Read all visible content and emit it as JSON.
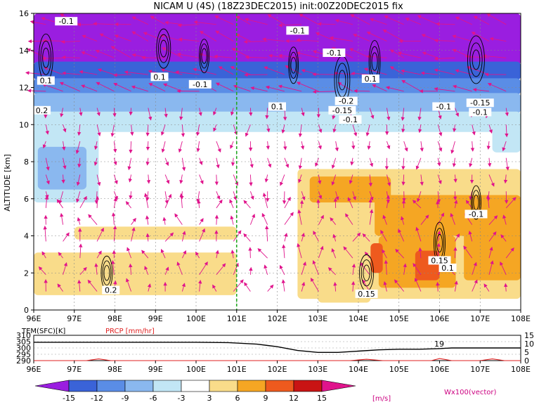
{
  "chart_data": [
    {
      "type": "heatmap",
      "title": "NICAM U (4S)  (18Z23DEC2015)  init:00Z20DEC2015  fix",
      "xlabel": "",
      "ylabel": "ALTITUDE [km]",
      "x_ticks": [
        "96E",
        "97E",
        "98E",
        "99E",
        "100E",
        "101E",
        "102E",
        "103E",
        "104E",
        "105E",
        "106E",
        "107E",
        "108E"
      ],
      "y_ticks": [
        "0",
        "2",
        "4",
        "6",
        "8",
        "10",
        "12",
        "14",
        "16"
      ],
      "xlim": [
        96,
        108
      ],
      "ylim": [
        0,
        16
      ],
      "grid": true,
      "marker_line_lon": 101,
      "colorbar": {
        "levels": [
          "-15",
          "-12",
          "-9",
          "-6",
          "-3",
          "3",
          "6",
          "9",
          "12",
          "15"
        ],
        "colors": [
          "#9a1ee0",
          "#3a63d8",
          "#5a8de6",
          "#8ab8ef",
          "#c2e6f5",
          "#ffffff",
          "#f9dc8a",
          "#f5a623",
          "#ee5a1e",
          "#c91414",
          "#9b0a0a"
        ],
        "unit": "[m/s]"
      },
      "vector_label": "Wx100(vector)",
      "regions": [
        {
          "lon0": 96,
          "lon1": 108,
          "alt0": 13.2,
          "alt1": 16,
          "level": "<-15"
        },
        {
          "lon0": 96,
          "lon1": 108,
          "alt0": 12.4,
          "alt1": 13.4,
          "level": "-15..-12"
        },
        {
          "lon0": 96,
          "lon1": 108,
          "alt0": 11.6,
          "alt1": 12.5,
          "level": "-12..-9"
        },
        {
          "lon0": 96,
          "lon1": 108,
          "alt0": 10.6,
          "alt1": 11.7,
          "level": "-9..-6"
        },
        {
          "lon0": 96,
          "lon1": 108,
          "alt0": 9.6,
          "alt1": 10.7,
          "level": "-6..-3"
        },
        {
          "lon0": 96,
          "lon1": 97.6,
          "alt0": 5.8,
          "alt1": 9.8,
          "level": "-6..-3"
        },
        {
          "lon0": 96.1,
          "lon1": 97.3,
          "alt0": 6.5,
          "alt1": 8.8,
          "level": "-9..-6"
        },
        {
          "lon0": 107.3,
          "lon1": 108,
          "alt0": 8.5,
          "alt1": 9.8,
          "level": "-6..-3"
        },
        {
          "lon0": 96,
          "lon1": 101,
          "alt0": 0.8,
          "alt1": 3.1,
          "level": "3..6"
        },
        {
          "lon0": 97,
          "lon1": 101,
          "alt0": 3.8,
          "alt1": 4.5,
          "level": "3..6"
        },
        {
          "lon0": 102.5,
          "lon1": 108,
          "alt0": 0.6,
          "alt1": 7.6,
          "level": "3..6"
        },
        {
          "lon0": 103,
          "lon1": 104.3,
          "alt0": 0.4,
          "alt1": 2.6,
          "level": "3..6"
        },
        {
          "lon0": 102.8,
          "lon1": 104.8,
          "alt0": 5.8,
          "alt1": 7.2,
          "level": "6..9"
        },
        {
          "lon0": 104.4,
          "lon1": 108,
          "alt0": 4.0,
          "alt1": 6.2,
          "level": "6..9"
        },
        {
          "lon0": 104.5,
          "lon1": 106.4,
          "alt0": 1.2,
          "alt1": 4.0,
          "level": "6..9"
        },
        {
          "lon0": 106.6,
          "lon1": 108,
          "alt0": 1.6,
          "alt1": 4.2,
          "level": "6..9"
        },
        {
          "lon0": 105.4,
          "lon1": 106,
          "alt0": 1.6,
          "alt1": 3.2,
          "level": "9..12"
        },
        {
          "lon0": 104.3,
          "lon1": 104.6,
          "alt0": 2.0,
          "alt1": 3.6,
          "level": "9..12"
        }
      ],
      "contour_labels": [
        {
          "text": "-0.1",
          "lon": 96.8,
          "alt": 15.5
        },
        {
          "text": "-0.1",
          "lon": 102.5,
          "alt": 15.0
        },
        {
          "text": "-0.1",
          "lon": 103.4,
          "alt": 13.8
        },
        {
          "text": "0.1",
          "lon": 99.1,
          "alt": 12.5
        },
        {
          "text": "-0.1",
          "lon": 100.1,
          "alt": 12.1
        },
        {
          "text": "0.1",
          "lon": 104.3,
          "alt": 12.4
        },
        {
          "text": "0.1",
          "lon": 102.0,
          "alt": 10.9
        },
        {
          "text": "-0.2",
          "lon": 103.7,
          "alt": 11.2
        },
        {
          "text": "-0.15",
          "lon": 103.6,
          "alt": 10.7
        },
        {
          "text": "-0.1",
          "lon": 103.8,
          "alt": 10.2
        },
        {
          "text": "-0.1",
          "lon": 106.1,
          "alt": 10.9
        },
        {
          "text": "-0.15",
          "lon": 107.0,
          "alt": 11.1
        },
        {
          "text": "-0.1",
          "lon": 107.0,
          "alt": 10.6
        },
        {
          "text": "0.2",
          "lon": 96.2,
          "alt": 10.7
        },
        {
          "text": "0.1",
          "lon": 96.3,
          "alt": 12.3
        },
        {
          "text": "-0.1",
          "lon": 106.9,
          "alt": 5.1
        },
        {
          "text": "0.15",
          "lon": 106.0,
          "alt": 2.6
        },
        {
          "text": "0.1",
          "lon": 106.2,
          "alt": 2.2
        },
        {
          "text": "0.15",
          "lon": 104.2,
          "alt": 0.8
        },
        {
          "text": "0.2",
          "lon": 97.9,
          "alt": 1.0
        }
      ]
    },
    {
      "type": "line",
      "title": "",
      "left_label": "TEM(SFC)[K]",
      "right_label": "PRCP [mm/hr]",
      "left_ticks": [
        "310",
        "305",
        "300",
        "295",
        "290"
      ],
      "right_ticks": [
        "15",
        "10",
        "5",
        "0"
      ],
      "x_ticks": [
        "96E",
        "97E",
        "98E",
        "99E",
        "100E",
        "101E",
        "102E",
        "103E",
        "104E",
        "105E",
        "106E",
        "107E",
        "108E"
      ],
      "annotation": "19",
      "series": [
        {
          "color": "#000000",
          "x": [
            96,
            98,
            100,
            100.8,
            101.5,
            102,
            102.5,
            103,
            103.5,
            104,
            104.5,
            105,
            105.5,
            106,
            106.3,
            107,
            108
          ],
          "y": [
            304.5,
            304.5,
            304.5,
            304.2,
            303,
            301,
            298,
            296.5,
            296.5,
            297.5,
            298.5,
            299,
            299,
            299.5,
            300,
            300,
            300
          ]
        },
        {
          "color": "#e02020",
          "x": [
            96,
            97.3,
            97.6,
            97.9,
            98.2,
            103.8,
            104.2,
            104.6,
            105,
            105.8,
            106,
            106.3,
            106.6,
            107,
            107.3,
            107.6,
            108
          ],
          "y": [
            0,
            0,
            1,
            0,
            0,
            0,
            0.8,
            0,
            0,
            0,
            1.2,
            0,
            0,
            0,
            1,
            0,
            0
          ]
        }
      ]
    }
  ]
}
